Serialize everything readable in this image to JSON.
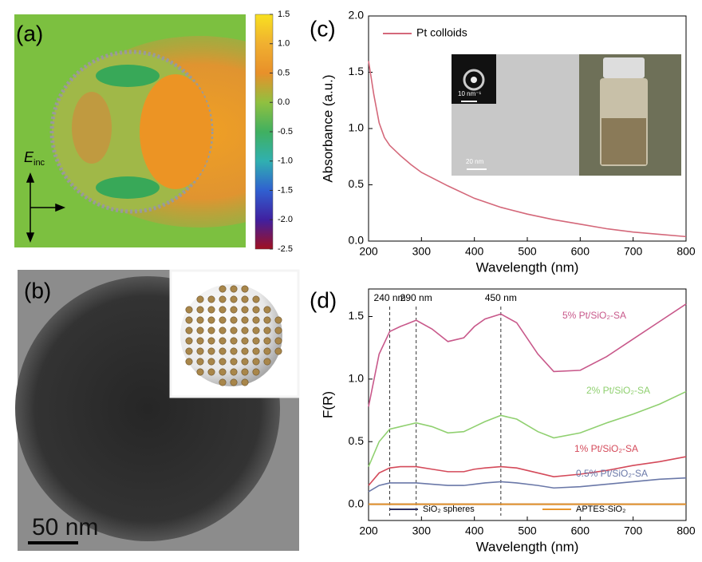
{
  "chart_data": [
    {
      "type": "heatmap",
      "panel": "(a)",
      "annotation": "E",
      "annotation_sub": "inc",
      "clim": [
        -2.5,
        1.5
      ],
      "cticks": [
        1.5,
        {
          "value": 1,
          "label": "1.0"
        },
        0.5,
        {
          "value": 0,
          "label": "0.0"
        },
        -0.5,
        {
          "value": -1,
          "label": "-1.0"
        },
        -1.5,
        {
          "value": -2,
          "label": "-2.0"
        },
        -2.5
      ]
    },
    {
      "type": "image",
      "panel": "(b)",
      "scale_bar": "50 nm"
    },
    {
      "type": "line",
      "panel": "(c)",
      "xlabel": "Wavelength (nm)",
      "ylabel": "Absorbance (a.u.)",
      "inset_labels": [
        "10 nm⁻¹",
        "20 nm"
      ],
      "x": [
        200,
        205,
        210,
        220,
        230,
        240,
        260,
        280,
        300,
        350,
        400,
        450,
        500,
        550,
        600,
        650,
        700,
        750,
        800
      ],
      "series": [
        {
          "name": "Pt colloids",
          "color": "#d4687a",
          "values": [
            1.6,
            1.45,
            1.3,
            1.05,
            0.92,
            0.85,
            0.76,
            0.68,
            0.61,
            0.49,
            0.38,
            0.3,
            0.24,
            0.19,
            0.15,
            0.11,
            0.08,
            0.06,
            0.04
          ]
        }
      ],
      "xlim": [
        200,
        800
      ],
      "xticks": [
        200,
        300,
        400,
        500,
        600,
        700,
        800
      ],
      "ylim": [
        0,
        2
      ],
      "yticks": [
        {
          "value": 0,
          "label": "0.0"
        },
        0.5,
        {
          "value": 1,
          "label": "1.0"
        },
        1.5,
        {
          "value": 2,
          "label": "2.0"
        }
      ]
    },
    {
      "type": "line",
      "panel": "(d)",
      "xlabel": "Wavelength (nm)",
      "ylabel": "F(R)",
      "annotations": [
        {
          "x": 240,
          "label": "240 nm"
        },
        {
          "x": 290,
          "label": "290 nm"
        },
        {
          "x": 450,
          "label": "450 nm"
        }
      ],
      "x": [
        200,
        220,
        240,
        260,
        290,
        320,
        350,
        380,
        400,
        420,
        450,
        480,
        520,
        550,
        600,
        650,
        700,
        750,
        800
      ],
      "series": [
        {
          "name": "5% Pt/SiO₂-SA",
          "color": "#c8588a",
          "values": [
            0.78,
            1.2,
            1.38,
            1.42,
            1.47,
            1.4,
            1.3,
            1.33,
            1.42,
            1.48,
            1.52,
            1.45,
            1.2,
            1.06,
            1.07,
            1.18,
            1.32,
            1.46,
            1.6
          ]
        },
        {
          "name": "2% Pt/SiO₂-SA",
          "color": "#90d070",
          "values": [
            0.3,
            0.5,
            0.6,
            0.62,
            0.65,
            0.62,
            0.57,
            0.58,
            0.62,
            0.66,
            0.71,
            0.68,
            0.58,
            0.53,
            0.57,
            0.65,
            0.72,
            0.8,
            0.9
          ]
        },
        {
          "name": "1% Pt/SiO₂-SA",
          "color": "#d44a5a",
          "values": [
            0.15,
            0.25,
            0.29,
            0.3,
            0.3,
            0.28,
            0.26,
            0.26,
            0.28,
            0.29,
            0.3,
            0.29,
            0.25,
            0.22,
            0.24,
            0.27,
            0.31,
            0.34,
            0.38
          ]
        },
        {
          "name": "0.5% Pt/SiO₂-SA",
          "color": "#6a78a8",
          "values": [
            0.1,
            0.15,
            0.17,
            0.17,
            0.17,
            0.16,
            0.15,
            0.15,
            0.16,
            0.17,
            0.18,
            0.17,
            0.15,
            0.13,
            0.14,
            0.16,
            0.18,
            0.2,
            0.21
          ]
        },
        {
          "name": "SiO₂ spheres",
          "color": "#303060",
          "values": [
            0,
            0,
            0,
            0,
            0,
            0,
            0,
            0,
            0,
            0,
            0,
            0,
            0,
            0,
            0,
            0,
            0,
            0,
            0
          ]
        },
        {
          "name": "APTES-SiO₂",
          "color": "#e8962e",
          "values": [
            0,
            0,
            0,
            0,
            0,
            0,
            0,
            0,
            0,
            0,
            0,
            0,
            0,
            0,
            0,
            0,
            0,
            0,
            0
          ]
        }
      ],
      "xlim": [
        200,
        800
      ],
      "xticks": [
        200,
        300,
        400,
        500,
        600,
        700,
        800
      ],
      "ylim": [
        -0.13,
        1.72
      ],
      "yticks": [
        {
          "value": 0,
          "label": "0.0"
        },
        0.5,
        {
          "value": 1,
          "label": "1.0"
        },
        1.5
      ]
    }
  ]
}
